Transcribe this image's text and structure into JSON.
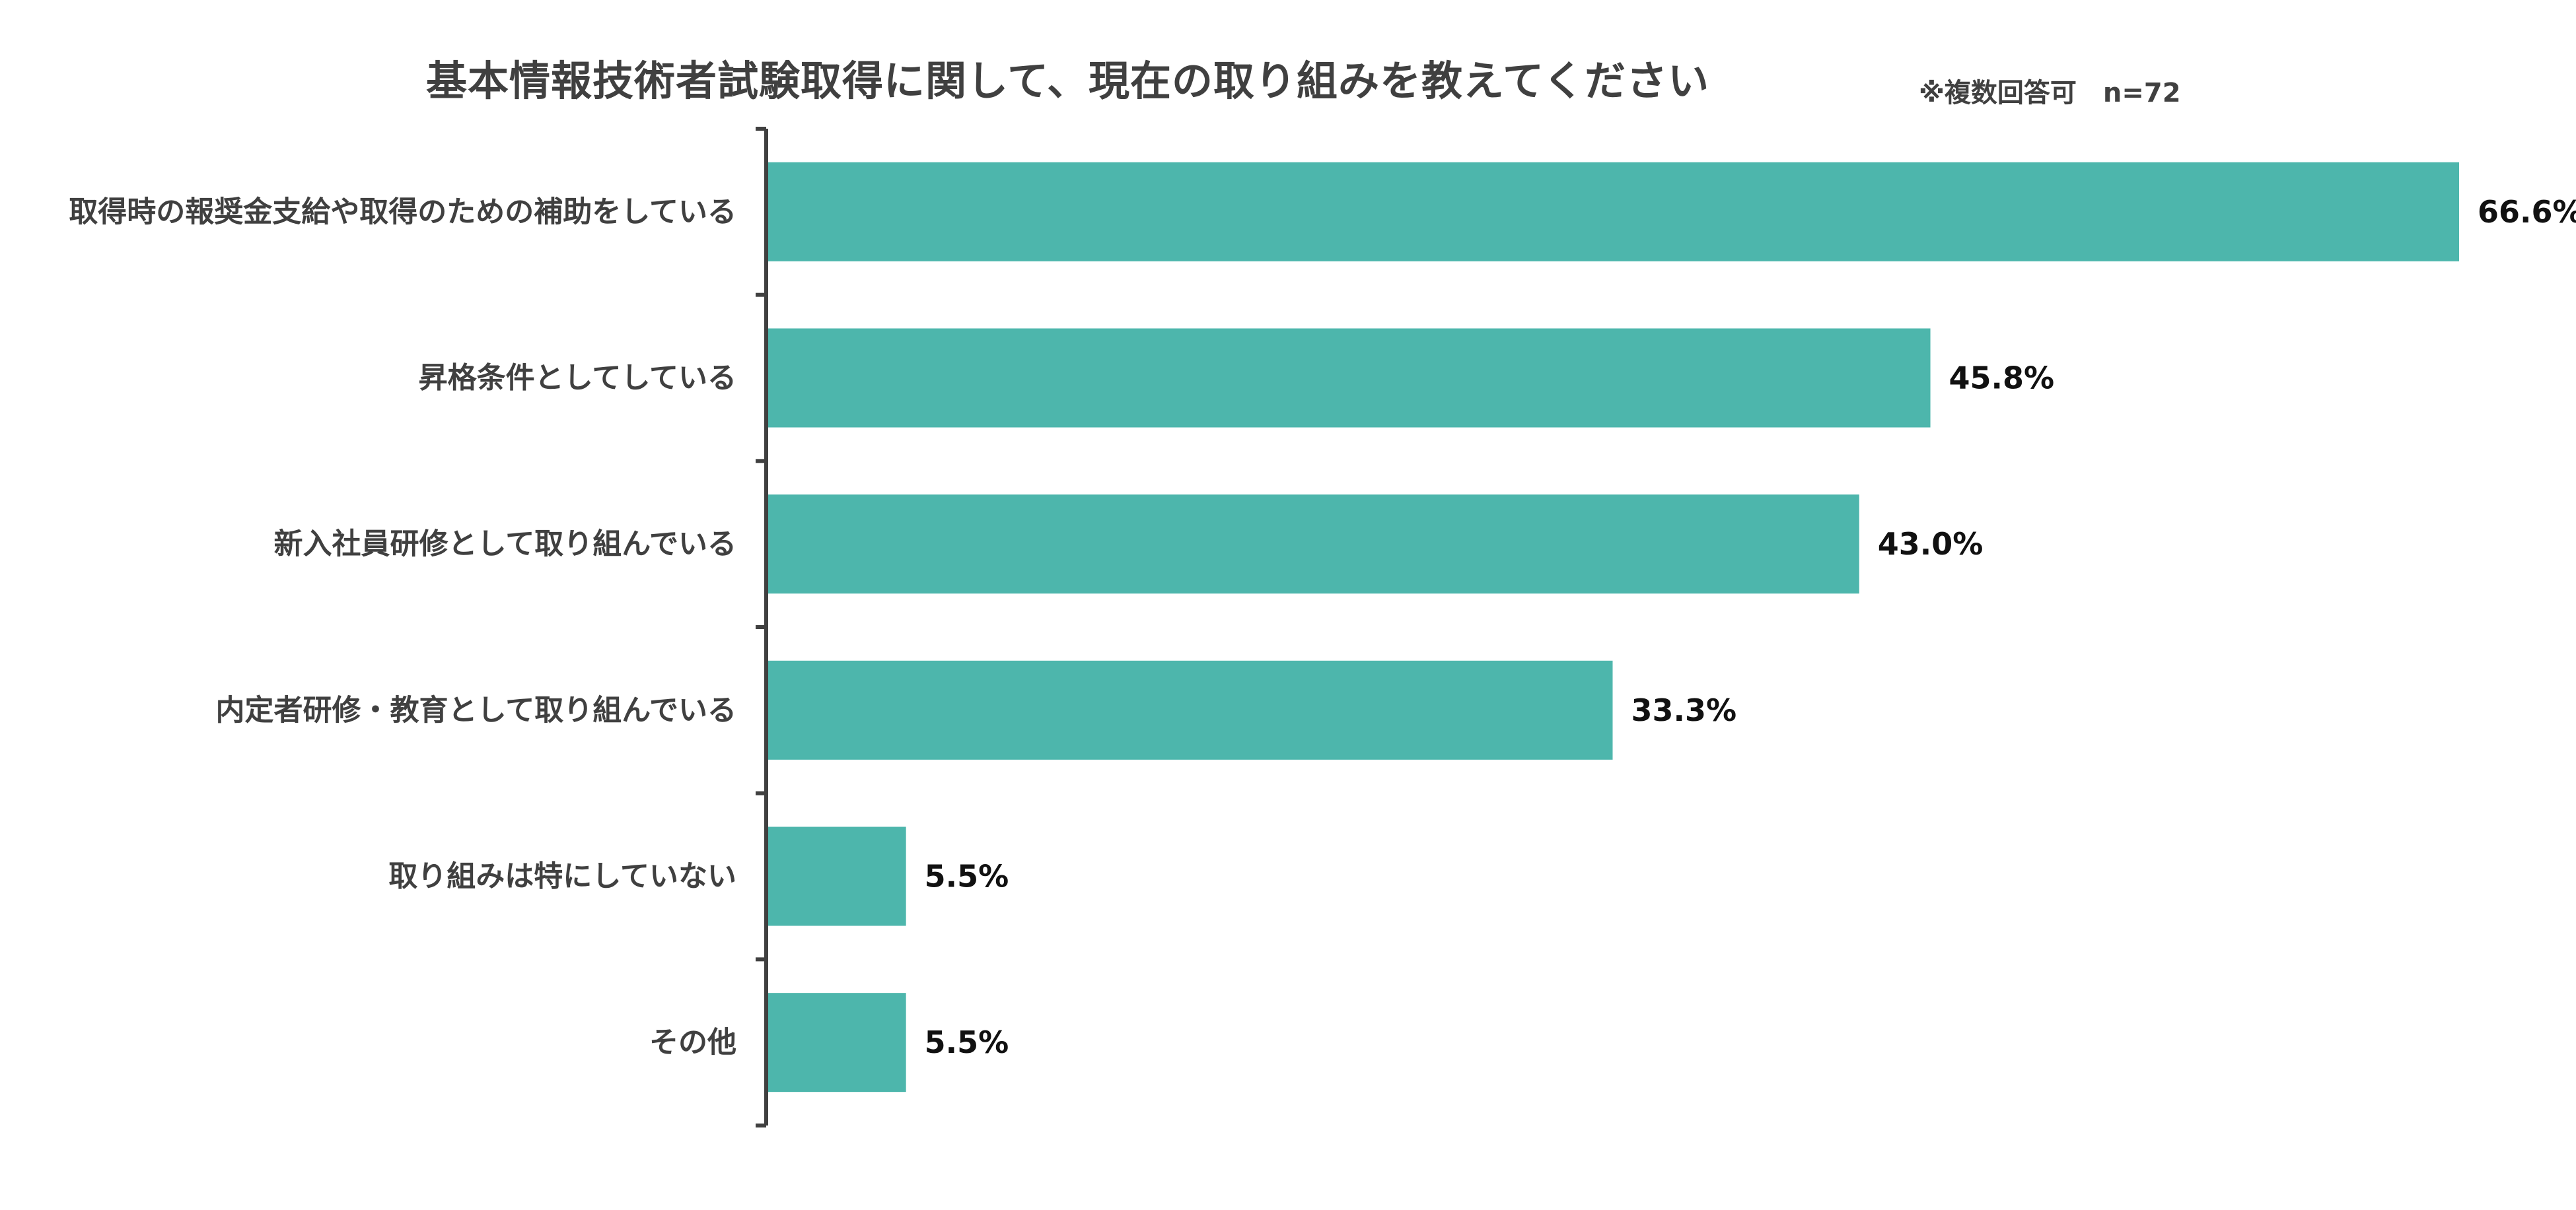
{
  "chart_data": {
    "type": "bar",
    "orientation": "horizontal",
    "title": "基本情報技術者試験取得に関して、現在の取り組みを教えてください",
    "note": "※複数回答可　n=72",
    "categories": [
      "取得時の報奨金支給や取得のための補助をしている",
      "昇格条件としてしている",
      "新入社員研修として取り組んでいる",
      "内定者研修・教育として取り組んでいる",
      "取り組みは特にしていない",
      "その他"
    ],
    "values": [
      66.6,
      45.8,
      43.0,
      33.3,
      5.5,
      5.5
    ],
    "value_labels": [
      "66.6%",
      "45.8%",
      "43.0%",
      "33.3%",
      "5.5%",
      "5.5%"
    ],
    "xlim": [
      0,
      66.6
    ],
    "grid": false,
    "legend": "none"
  },
  "colors": {
    "bar": "#4db6ac",
    "axis": "#404040",
    "category_text": "#404040",
    "value_text": "#111111",
    "title_text": "#404040"
  }
}
